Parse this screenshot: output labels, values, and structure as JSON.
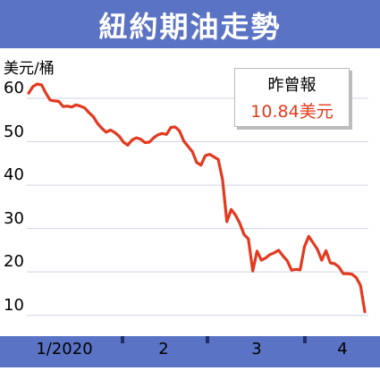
{
  "title": "紐約期油走勢",
  "chart_data": {
    "type": "line",
    "ylabel": "美元/桶",
    "ylim": [
      5,
      67
    ],
    "yticks": [
      "60",
      "50",
      "40",
      "30",
      "20",
      "10"
    ],
    "xticks": [
      "1/2020",
      "2",
      "3",
      "4"
    ],
    "line_color": "#e3391f",
    "x": [
      1,
      2,
      3,
      4,
      5,
      6,
      7,
      8,
      9,
      10,
      11,
      12,
      13,
      14,
      15,
      16,
      17,
      18,
      19,
      20,
      21,
      22,
      23,
      24,
      25,
      26,
      27,
      28,
      29,
      30,
      31,
      32,
      33,
      34,
      35,
      36,
      37,
      38,
      39,
      40,
      41,
      42,
      43,
      44,
      45,
      46,
      47,
      48,
      49,
      50,
      51,
      52,
      53,
      54,
      55,
      56,
      57,
      58,
      59,
      60,
      61,
      62,
      63,
      64,
      65,
      66,
      67,
      68,
      69,
      70,
      71,
      72,
      73,
      74,
      75,
      76,
      77,
      78,
      79
    ],
    "values": [
      61.2,
      62.7,
      63.3,
      63.1,
      61.2,
      59.6,
      59.4,
      59.3,
      58.1,
      58.2,
      58.0,
      58.5,
      58.2,
      57.8,
      56.7,
      55.8,
      54.2,
      53.1,
      52.2,
      52.7,
      52.1,
      51.3,
      49.9,
      49.2,
      50.4,
      50.9,
      50.6,
      49.8,
      49.9,
      50.9,
      51.6,
      51.9,
      51.7,
      53.3,
      53.4,
      52.5,
      50.2,
      48.9,
      47.7,
      45.2,
      44.6,
      46.8,
      47.1,
      46.5,
      45.9,
      41.3,
      31.6,
      34.4,
      33.1,
      31.2,
      28.6,
      27.6,
      20.2,
      24.8,
      22.7,
      23.2,
      24.0,
      24.4,
      25.0,
      23.7,
      22.6,
      20.4,
      20.6,
      20.5,
      25.8,
      28.2,
      26.7,
      25.2,
      22.7,
      24.9,
      22.1,
      21.9,
      21.1,
      19.6,
      19.6,
      19.5,
      18.7,
      16.9,
      10.8
    ],
    "callout": {
      "label": "昨曾報",
      "value": "10.84",
      "unit": "美元"
    }
  }
}
